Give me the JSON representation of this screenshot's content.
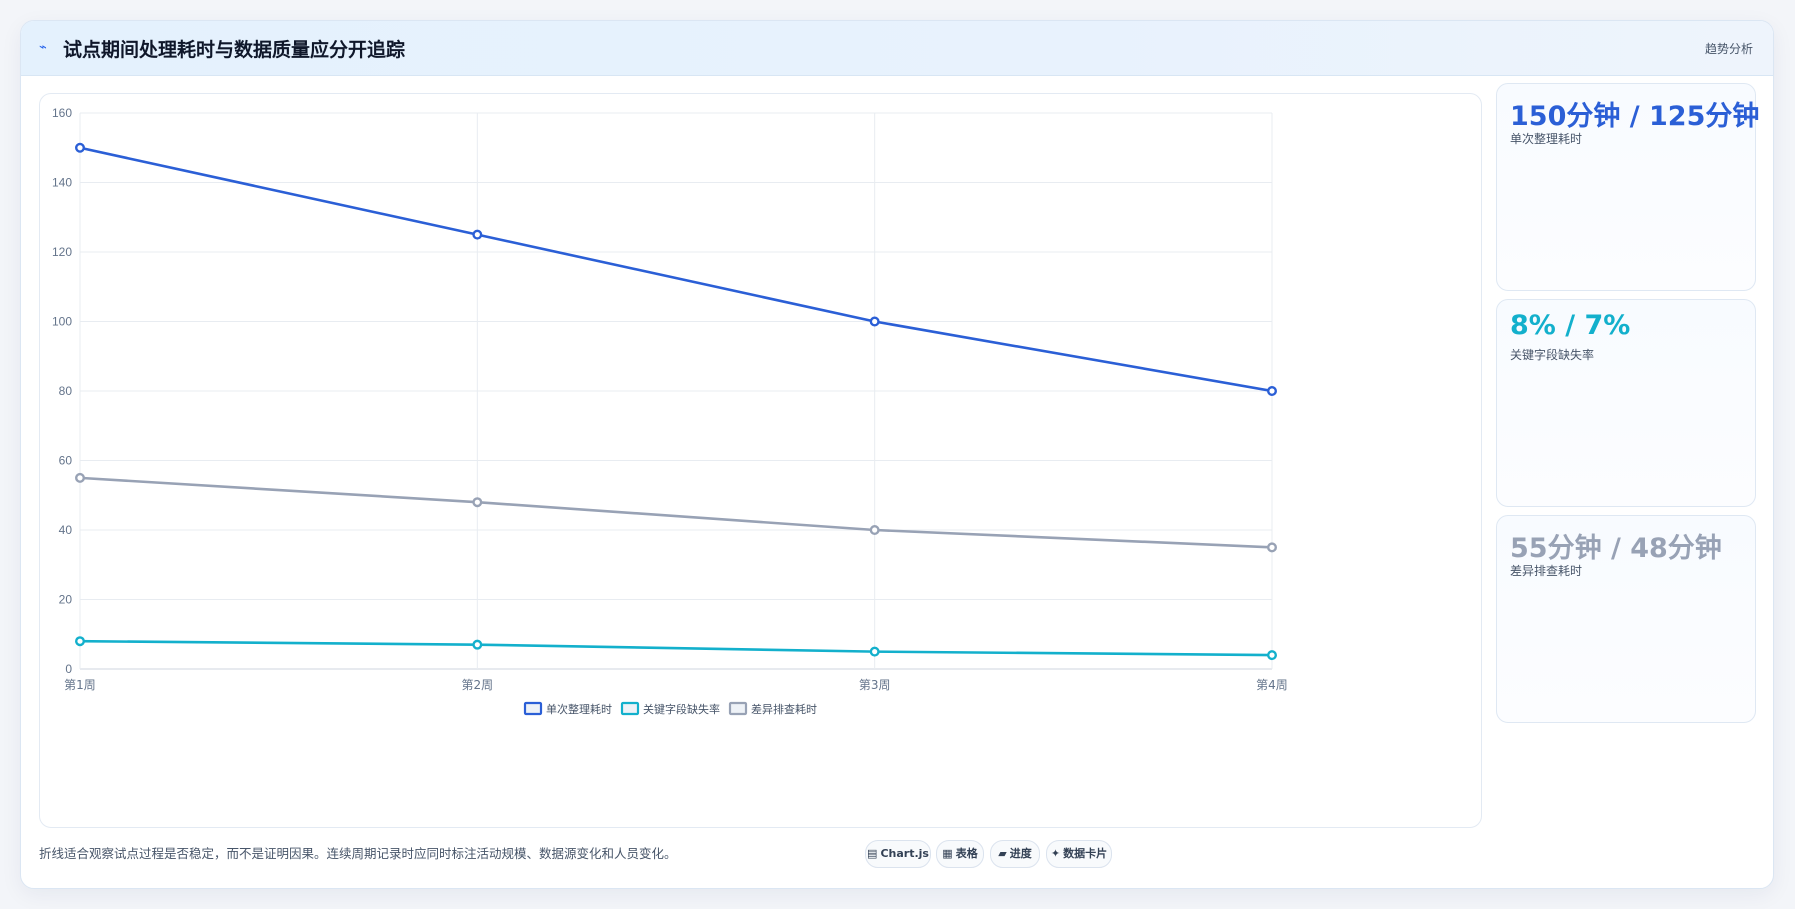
{
  "header": {
    "title": "试点期间处理耗时与数据质量应分开追踪",
    "tag": "趋势分析"
  },
  "colors": {
    "series1": "#2b5fd6",
    "series2": "#13b0cc",
    "series3": "#98a2b5"
  },
  "chart_data": {
    "type": "line",
    "categories": [
      "第1周",
      "第2周",
      "第3周",
      "第4周"
    ],
    "series": [
      {
        "name": "单次整理耗时",
        "values": [
          150,
          125,
          100,
          80
        ]
      },
      {
        "name": "关键字段缺失率",
        "values": [
          8,
          7,
          5,
          4
        ]
      },
      {
        "name": "差异排查耗时",
        "values": [
          55,
          48,
          40,
          35
        ]
      }
    ],
    "ylim": [
      0,
      160
    ],
    "yticks": [
      0,
      20,
      40,
      60,
      80,
      100,
      120,
      140,
      160
    ],
    "grid": true,
    "legend": "bottom"
  },
  "side_cards": [
    {
      "value": "150分钟 / 125分钟",
      "label": "单次整理耗时"
    },
    {
      "value": "8% / 7%",
      "label": "关键字段缺失率"
    },
    {
      "value": "55分钟 / 48分钟",
      "label": "差异排查耗时"
    }
  ],
  "footer": {
    "note": "折线适合观察试点过程是否稳定，而不是证明因果。连续周期记录时应同时标注活动规模、数据源变化和人员变化。",
    "chips": [
      {
        "icon": "▤",
        "label": "Chart.js"
      },
      {
        "icon": "▦",
        "label": "表格"
      },
      {
        "icon": "▰",
        "label": "进度"
      },
      {
        "icon": "✦",
        "label": "数据卡片"
      }
    ]
  }
}
